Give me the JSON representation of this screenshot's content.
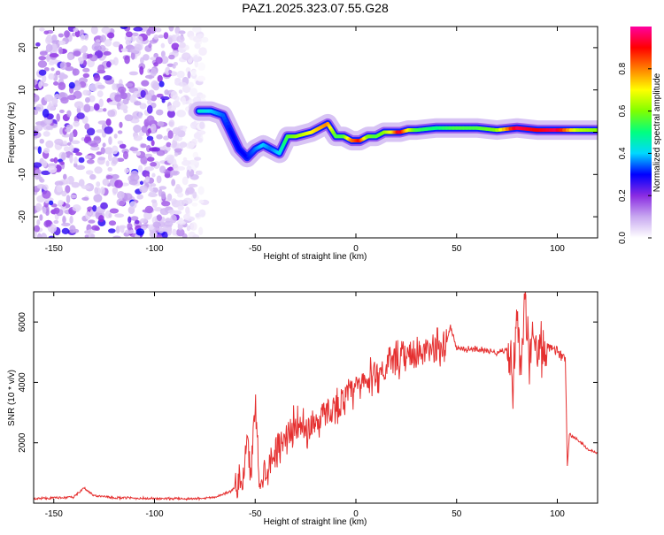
{
  "title": "PAZ1.2025.323.07.55.G28",
  "chart_data": [
    {
      "type": "heatmap",
      "xlabel": "Height of straight line (km)",
      "ylabel": "Frequency (Hz)",
      "xlim": [
        -160,
        120
      ],
      "ylim": [
        -25,
        25
      ],
      "xticks": [
        -150,
        -100,
        -50,
        0,
        50,
        100
      ],
      "yticks": [
        -20,
        -10,
        0,
        10,
        20
      ],
      "colorbar": {
        "label": "Normalized spectral amplitude",
        "range": [
          0,
          1
        ],
        "ticks": [
          "0.0",
          "0.2",
          "0.4",
          "0.6",
          "0.8"
        ],
        "colors": [
          "#ffffff",
          "#c8a8f0",
          "#8a2be2",
          "#0000ff",
          "#00d8ff",
          "#00ff80",
          "#80ff00",
          "#ffff00",
          "#ff8000",
          "#ff0000",
          "#ff00a0"
        ]
      },
      "ridge": {
        "x": [
          -78,
          -72,
          -66,
          -62,
          -58,
          -54,
          -50,
          -46,
          -42,
          -38,
          -34,
          -30,
          -26,
          -22,
          -18,
          -14,
          -10,
          -6,
          -2,
          2,
          6,
          10,
          14,
          18,
          22,
          26,
          30,
          40,
          50,
          60,
          70,
          80,
          90,
          100,
          110,
          120
        ],
        "y": [
          5,
          5,
          4,
          0,
          -4,
          -6,
          -4,
          -3,
          -4,
          -5,
          -1,
          -1,
          -0.5,
          0,
          1,
          2,
          -1,
          -1,
          -2,
          -2,
          -1,
          -1,
          0,
          0,
          0,
          0.5,
          0.5,
          1,
          1,
          1,
          0.5,
          1,
          0.5,
          0.5,
          0.5,
          0.5
        ],
        "amplitude": [
          0.45,
          0.4,
          0.35,
          0.3,
          0.3,
          0.3,
          0.35,
          0.4,
          0.35,
          0.4,
          0.55,
          0.6,
          0.65,
          0.7,
          0.75,
          0.8,
          0.55,
          0.55,
          0.8,
          0.9,
          0.6,
          0.55,
          0.6,
          0.7,
          0.95,
          0.7,
          0.55,
          0.5,
          0.55,
          0.55,
          0.6,
          0.95,
          0.9,
          0.95,
          0.65,
          0.6
        ]
      },
      "noise_region_x": [
        -160,
        -75
      ]
    },
    {
      "type": "line",
      "xlabel": "Height of straight line (km)",
      "ylabel": "SNR (10 * v/v)",
      "xlim": [
        -160,
        120
      ],
      "ylim": [
        0,
        7000
      ],
      "xticks": [
        -150,
        -100,
        -50,
        0,
        50,
        100
      ],
      "yticks": [
        2000,
        4000,
        6000
      ],
      "color": "#e53030",
      "series": [
        {
          "name": "SNR",
          "x": [
            -160,
            -140,
            -135,
            -130,
            -120,
            -100,
            -80,
            -70,
            -62,
            -56,
            -54,
            -52,
            -50,
            -48,
            -46,
            -40,
            -35,
            -30,
            -25,
            -20,
            -15,
            -10,
            -5,
            0,
            5,
            10,
            15,
            20,
            25,
            30,
            40,
            45,
            47,
            50,
            60,
            70,
            75,
            78,
            80,
            82,
            84,
            86,
            88,
            90,
            95,
            100,
            104,
            105,
            106,
            110,
            115,
            120
          ],
          "y": [
            150,
            200,
            500,
            250,
            180,
            150,
            150,
            200,
            400,
            800,
            2000,
            1000,
            3500,
            800,
            900,
            1800,
            2200,
            2600,
            2400,
            2700,
            3000,
            3200,
            3500,
            3800,
            4000,
            4300,
            4500,
            4700,
            4800,
            4900,
            5100,
            5300,
            5900,
            5100,
            5100,
            5000,
            5100,
            4200,
            6300,
            4000,
            6900,
            4500,
            6000,
            4800,
            5200,
            5000,
            4800,
            1200,
            2300,
            2100,
            1800,
            1650
          ]
        }
      ]
    }
  ]
}
